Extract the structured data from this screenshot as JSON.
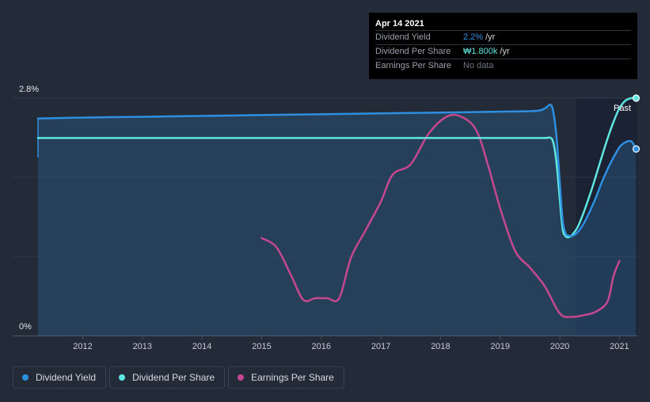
{
  "colors": {
    "background": "#232a38",
    "dividend_yield": "#2e8fe0",
    "dividend_per_share": "#5ee6e0",
    "earnings_per_share": "#c5488f"
  },
  "tooltip": {
    "date": "Apr 14 2021",
    "rows": [
      {
        "label": "Dividend Yield",
        "value": "2.2%",
        "unit": "/yr"
      },
      {
        "label": "Dividend Per Share",
        "value": "₩1.800k",
        "unit": "/yr"
      },
      {
        "label": "Earnings Per Share",
        "value": "No data",
        "unit": ""
      }
    ]
  },
  "legend": [
    {
      "label": "Dividend Yield"
    },
    {
      "label": "Dividend Per Share"
    },
    {
      "label": "Earnings Per Share"
    }
  ],
  "chart_data": {
    "type": "line",
    "past_label": "Past",
    "y_top_label": "2.8%",
    "y_bottom_label": "0%",
    "ylim": [
      0,
      2.8
    ],
    "xlim": [
      2011.25,
      2021.3
    ],
    "x_ticks": [
      2012,
      2013,
      2014,
      2015,
      2016,
      2017,
      2018,
      2019,
      2020,
      2021
    ],
    "x_tick_labels": [
      "2012",
      "2013",
      "2014",
      "2015",
      "2016",
      "2017",
      "2018",
      "2019",
      "2020",
      "2021"
    ],
    "past_region_start": 2020.27,
    "grid": true,
    "series": [
      {
        "name": "Dividend Yield",
        "unit": "%",
        "x": [
          2011.25,
          2012.0,
          2013.0,
          2014.0,
          2015.0,
          2016.0,
          2017.0,
          2018.0,
          2019.0,
          2019.6,
          2019.75,
          2019.85,
          2019.9,
          2019.95,
          2020.0,
          2020.05,
          2020.1,
          2020.15,
          2020.2,
          2020.3,
          2020.4,
          2020.5,
          2020.6,
          2020.7,
          2020.8,
          2020.9,
          2021.0,
          2021.1,
          2021.2,
          2021.28
        ],
        "y": [
          2.56,
          2.57,
          2.58,
          2.59,
          2.6,
          2.61,
          2.62,
          2.63,
          2.64,
          2.65,
          2.68,
          2.72,
          2.6,
          2.3,
          1.8,
          1.35,
          1.2,
          1.18,
          1.17,
          1.22,
          1.32,
          1.46,
          1.62,
          1.8,
          1.96,
          2.1,
          2.22,
          2.28,
          2.29,
          2.2
        ]
      },
      {
        "name": "Dividend Per Share",
        "unit": "%",
        "x": [
          2011.25,
          2012.0,
          2013.0,
          2014.0,
          2015.0,
          2016.0,
          2017.0,
          2018.0,
          2019.0,
          2019.5,
          2019.75,
          2019.85,
          2019.9,
          2019.95,
          2020.0,
          2020.05,
          2020.1,
          2020.15,
          2020.2,
          2020.3,
          2020.4,
          2020.5,
          2020.6,
          2020.7,
          2020.8,
          2020.9,
          2021.0,
          2021.1,
          2021.2,
          2021.28
        ],
        "y": [
          2.33,
          2.33,
          2.33,
          2.33,
          2.33,
          2.33,
          2.33,
          2.33,
          2.33,
          2.33,
          2.33,
          2.33,
          2.25,
          2.0,
          1.6,
          1.25,
          1.17,
          1.16,
          1.18,
          1.28,
          1.45,
          1.65,
          1.87,
          2.1,
          2.32,
          2.52,
          2.68,
          2.77,
          2.8,
          2.8
        ]
      },
      {
        "name": "Earnings Per Share",
        "unit": "relative",
        "x": [
          2015.0,
          2015.25,
          2015.5,
          2015.7,
          2015.9,
          2016.1,
          2016.3,
          2016.5,
          2016.75,
          2017.0,
          2017.2,
          2017.5,
          2017.8,
          2018.1,
          2018.35,
          2018.6,
          2018.8,
          2019.0,
          2019.25,
          2019.5,
          2019.75,
          2020.0,
          2020.2,
          2020.4,
          2020.6,
          2020.8,
          2020.9,
          2021.0
        ],
        "y": [
          1.15,
          1.04,
          0.7,
          0.42,
          0.44,
          0.44,
          0.44,
          0.92,
          1.25,
          1.58,
          1.9,
          2.02,
          2.38,
          2.58,
          2.58,
          2.42,
          2.0,
          1.5,
          1.0,
          0.8,
          0.58,
          0.26,
          0.22,
          0.24,
          0.28,
          0.4,
          0.7,
          0.88
        ]
      }
    ]
  }
}
